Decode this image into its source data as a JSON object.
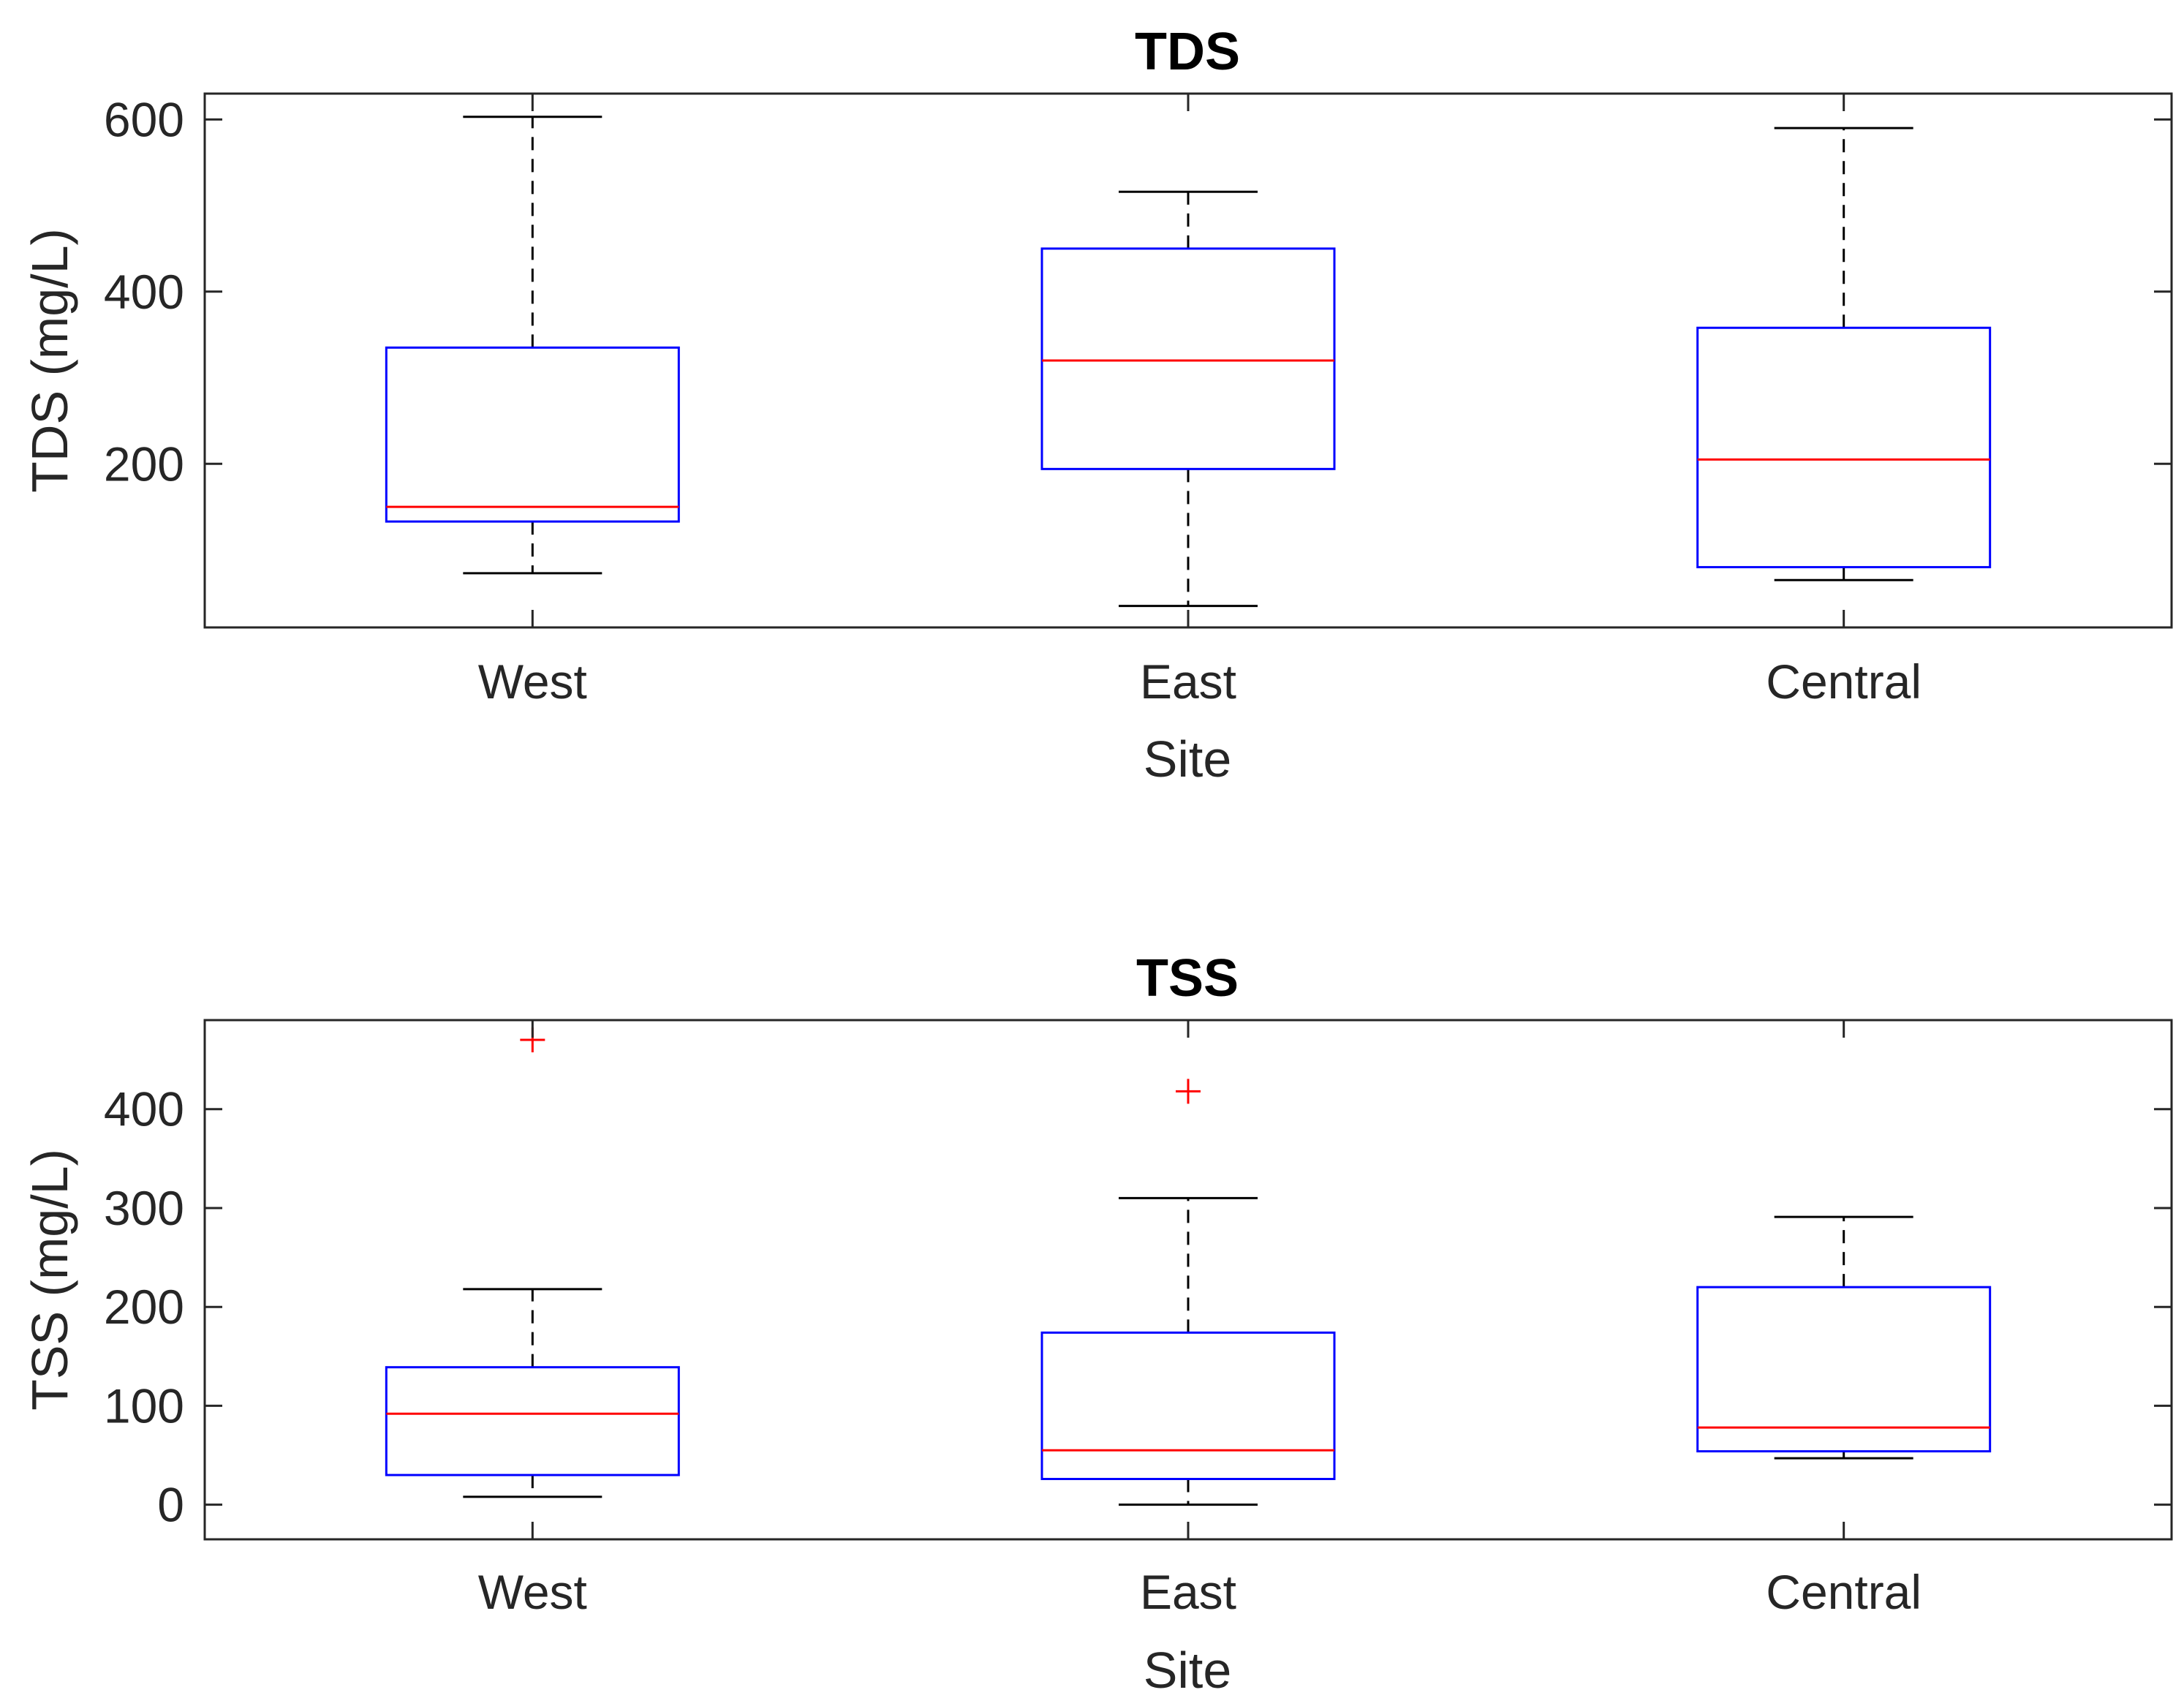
{
  "chart_data": [
    {
      "type": "box",
      "title": "TDS",
      "xlabel": "Site",
      "ylabel": "TDS (mg/L)",
      "categories": [
        "West",
        "East",
        "Central"
      ],
      "ylim": [
        10,
        630
      ],
      "yticks": [
        200,
        400,
        600
      ],
      "grid": false,
      "boxes": [
        {
          "category": "West",
          "whisker_low": 73,
          "q1": 133,
          "median": 150,
          "q3": 335,
          "whisker_high": 603,
          "outliers": []
        },
        {
          "category": "East",
          "whisker_low": 35,
          "q1": 194,
          "median": 320,
          "q3": 450,
          "whisker_high": 516,
          "outliers": []
        },
        {
          "category": "Central",
          "whisker_low": 65,
          "q1": 80,
          "median": 205,
          "q3": 358,
          "whisker_high": 590,
          "outliers": []
        }
      ]
    },
    {
      "type": "box",
      "title": "TSS",
      "xlabel": "Site",
      "ylabel": "TSS (mg/L)",
      "categories": [
        "West",
        "East",
        "Central"
      ],
      "ylim": [
        -35,
        490
      ],
      "yticks": [
        0,
        100,
        200,
        300,
        400
      ],
      "grid": false,
      "boxes": [
        {
          "category": "West",
          "whisker_low": 8,
          "q1": 30,
          "median": 92,
          "q3": 139,
          "whisker_high": 218,
          "outliers": [
            470
          ]
        },
        {
          "category": "East",
          "whisker_low": 0,
          "q1": 26,
          "median": 55,
          "q3": 174,
          "whisker_high": 310,
          "outliers": [
            418
          ]
        },
        {
          "category": "Central",
          "whisker_low": 47,
          "q1": 54,
          "median": 78,
          "q3": 220,
          "whisker_high": 291,
          "outliers": []
        }
      ]
    }
  ],
  "colors": {
    "box": "#0000ff",
    "median": "#ff0000",
    "whisker": "#000000",
    "outlier": "#ff0000",
    "axes": "#262626"
  }
}
